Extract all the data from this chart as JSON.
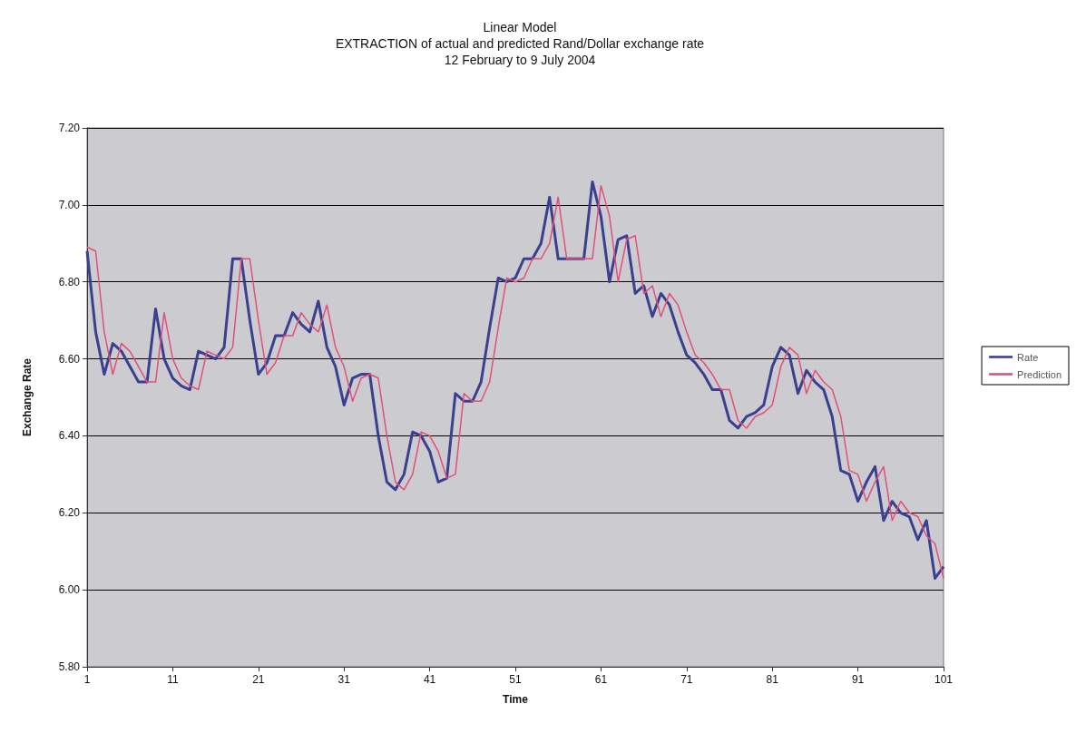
{
  "chart_data": {
    "type": "line",
    "title": "Linear Model\nEXTRACTION of actual and predicted Rand/Dollar exchange rate\n12 February to 9 July 2004",
    "xlabel": "Time",
    "ylabel": "Exchange Rate",
    "x": [
      1,
      2,
      3,
      4,
      5,
      6,
      7,
      8,
      9,
      10,
      11,
      12,
      13,
      14,
      15,
      16,
      17,
      18,
      19,
      20,
      21,
      22,
      23,
      24,
      25,
      26,
      27,
      28,
      29,
      30,
      31,
      32,
      33,
      34,
      35,
      36,
      37,
      38,
      39,
      40,
      41,
      42,
      43,
      44,
      45,
      46,
      47,
      48,
      49,
      50,
      51,
      52,
      53,
      54,
      55,
      56,
      57,
      58,
      59,
      60,
      61,
      62,
      63,
      64,
      65,
      66,
      67,
      68,
      69,
      70,
      71,
      72,
      73,
      74,
      75,
      76,
      77,
      78,
      79,
      80,
      81,
      82,
      83,
      84,
      85,
      86,
      87,
      88,
      89,
      90,
      91,
      92,
      93,
      94,
      95,
      96,
      97,
      98,
      99,
      100,
      101
    ],
    "series": [
      {
        "name": "Rate",
        "color": "#3b3f8f",
        "values": [
          6.88,
          6.67,
          6.56,
          6.64,
          6.62,
          6.58,
          6.54,
          6.54,
          6.73,
          6.6,
          6.55,
          6.53,
          6.52,
          6.62,
          6.61,
          6.6,
          6.63,
          6.86,
          6.86,
          6.7,
          6.56,
          6.59,
          6.66,
          6.66,
          6.72,
          6.69,
          6.67,
          6.75,
          6.63,
          6.58,
          6.48,
          6.55,
          6.56,
          6.56,
          6.4,
          6.28,
          6.26,
          6.3,
          6.41,
          6.4,
          6.36,
          6.28,
          6.29,
          6.51,
          6.49,
          6.49,
          6.54,
          6.68,
          6.81,
          6.8,
          6.81,
          6.86,
          6.86,
          6.9,
          7.02,
          6.86,
          6.86,
          6.86,
          6.86,
          7.06,
          6.97,
          6.8,
          6.91,
          6.92,
          6.77,
          6.79,
          6.71,
          6.77,
          6.74,
          6.67,
          6.61,
          6.59,
          6.56,
          6.52,
          6.52,
          6.44,
          6.42,
          6.45,
          6.46,
          6.48,
          6.58,
          6.63,
          6.61,
          6.51,
          6.57,
          6.54,
          6.52,
          6.45,
          6.31,
          6.3,
          6.23,
          6.28,
          6.32,
          6.18,
          6.23,
          6.2,
          6.19,
          6.13,
          6.18,
          6.03,
          6.06
        ]
      },
      {
        "name": "Prediction",
        "color": "#e0507a",
        "values": [
          6.89,
          6.88,
          6.67,
          6.56,
          6.64,
          6.62,
          6.58,
          6.54,
          6.54,
          6.72,
          6.6,
          6.55,
          6.53,
          6.52,
          6.62,
          6.61,
          6.6,
          6.63,
          6.86,
          6.86,
          6.7,
          6.56,
          6.59,
          6.66,
          6.66,
          6.72,
          6.69,
          6.67,
          6.74,
          6.63,
          6.58,
          6.49,
          6.55,
          6.56,
          6.55,
          6.4,
          6.28,
          6.26,
          6.3,
          6.41,
          6.4,
          6.36,
          6.29,
          6.3,
          6.51,
          6.49,
          6.49,
          6.54,
          6.68,
          6.81,
          6.8,
          6.81,
          6.86,
          6.86,
          6.9,
          7.02,
          6.86,
          6.86,
          6.86,
          6.86,
          7.05,
          6.97,
          6.8,
          6.91,
          6.92,
          6.77,
          6.79,
          6.71,
          6.77,
          6.74,
          6.67,
          6.61,
          6.59,
          6.56,
          6.52,
          6.52,
          6.44,
          6.42,
          6.45,
          6.46,
          6.48,
          6.58,
          6.63,
          6.61,
          6.51,
          6.57,
          6.54,
          6.52,
          6.45,
          6.31,
          6.3,
          6.23,
          6.28,
          6.32,
          6.18,
          6.23,
          6.2,
          6.19,
          6.14,
          6.12,
          6.03
        ]
      }
    ],
    "xlim": [
      1,
      101
    ],
    "xticks": [
      1,
      11,
      21,
      31,
      41,
      51,
      61,
      71,
      81,
      91,
      101
    ],
    "ylim": [
      5.8,
      7.2
    ],
    "yticks": [
      {
        "value": 5.8,
        "label": "5.80"
      },
      {
        "value": 6.0,
        "label": "6.00"
      },
      {
        "value": 6.2,
        "label": "6.20"
      },
      {
        "value": 6.4,
        "label": "6.40"
      },
      {
        "value": 6.6,
        "label": "6.60"
      },
      {
        "value": 6.8,
        "label": "6.80"
      },
      {
        "value": 7.0,
        "label": "7.00"
      },
      {
        "value": 7.2,
        "label": "7.20"
      }
    ],
    "grid": "y",
    "legend": "right",
    "marker": "none",
    "line_style": "solid"
  }
}
